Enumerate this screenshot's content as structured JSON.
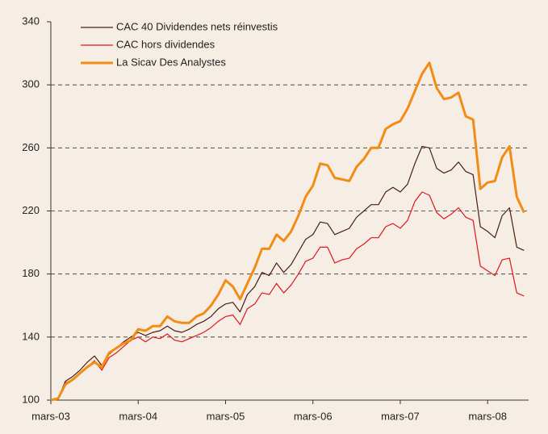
{
  "chart_data": {
    "type": "line",
    "categories": [
      "mars-03",
      null,
      null,
      null,
      null,
      null,
      null,
      null,
      null,
      null,
      null,
      null,
      "mars-04",
      null,
      null,
      null,
      null,
      null,
      null,
      null,
      null,
      null,
      null,
      null,
      "mars-05",
      null,
      null,
      null,
      null,
      null,
      null,
      null,
      null,
      null,
      null,
      null,
      "mars-06",
      null,
      null,
      null,
      null,
      null,
      null,
      null,
      null,
      null,
      null,
      null,
      "mars-07",
      null,
      null,
      null,
      null,
      null,
      null,
      null,
      null,
      null,
      null,
      null,
      "mars-08",
      null,
      null,
      null,
      null,
      null
    ],
    "series": [
      {
        "name": "CAC 40 Dividendes nets réinvestis",
        "color": "#4a1e10",
        "width": 1.2,
        "values": [
          100,
          101,
          112,
          115,
          119,
          124,
          128,
          122,
          129,
          133,
          137,
          140,
          143,
          141,
          143,
          144,
          147,
          144,
          143,
          145,
          148,
          150,
          153,
          158,
          161,
          162,
          156,
          167,
          172,
          181,
          179,
          187,
          181,
          186,
          194,
          202,
          205,
          213,
          212,
          205,
          207,
          209,
          216,
          220,
          224,
          224,
          232,
          235,
          232,
          237,
          250,
          261,
          260,
          247,
          244,
          246,
          251,
          245,
          243,
          210,
          207,
          203,
          217,
          222,
          197,
          195
        ]
      },
      {
        "name": "CAC hors dividendes",
        "color": "#e0141e",
        "width": 1.2,
        "values": [
          100,
          101,
          111,
          113,
          117,
          121,
          125,
          119,
          127,
          130,
          134,
          138,
          140,
          137,
          140,
          139,
          142,
          138,
          137,
          139,
          141,
          143,
          146,
          150,
          153,
          154,
          148,
          158,
          161,
          168,
          167,
          174,
          168,
          173,
          180,
          188,
          190,
          197,
          197,
          187,
          189,
          190,
          196,
          199,
          203,
          203,
          210,
          212,
          209,
          214,
          226,
          232,
          230,
          219,
          215,
          218,
          222,
          216,
          214,
          185,
          182,
          179,
          189,
          190,
          168,
          166
        ]
      },
      {
        "name": "La Sicav Des Analystes",
        "color": "#f28c14",
        "width": 3,
        "values": [
          100,
          101,
          110,
          113,
          117,
          121,
          124,
          121,
          130,
          133,
          136,
          138,
          145,
          144,
          147,
          147,
          153,
          150,
          149,
          149,
          153,
          155,
          160,
          167,
          176,
          172,
          164,
          174,
          184,
          196,
          196,
          205,
          201,
          207,
          217,
          229,
          236,
          250,
          249,
          241,
          240,
          239,
          248,
          253,
          260,
          260,
          272,
          275,
          277,
          285,
          296,
          307,
          314,
          298,
          291,
          292,
          295,
          280,
          278,
          234,
          238,
          239,
          254,
          261,
          229,
          219
        ]
      }
    ],
    "ylim": [
      100,
      340
    ],
    "yticks": [
      100,
      140,
      180,
      220,
      260,
      300,
      340
    ],
    "grid": true,
    "legend": "upper left"
  }
}
